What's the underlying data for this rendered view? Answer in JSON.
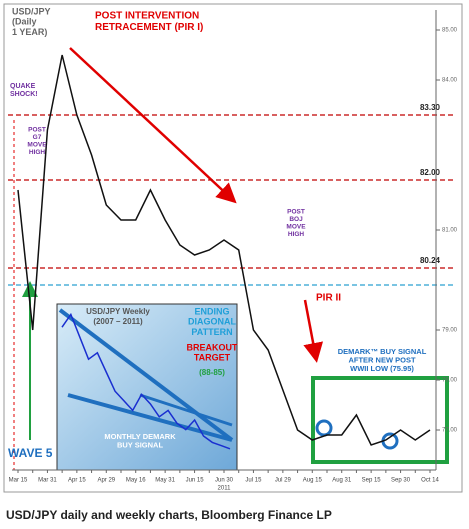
{
  "chart_data": [
    {
      "type": "line",
      "categories": [
        "Mar 15",
        null,
        "Mar 31",
        null,
        "Apr 15",
        null,
        "Apr 29",
        null,
        "May 16",
        null,
        "May 31",
        null,
        "Jun 15",
        null,
        "Jun 30",
        null,
        "Jul 15",
        null,
        "Jul 29",
        null,
        "Aug 15",
        null,
        "Aug 31",
        null,
        "Sep 15",
        null,
        "Sep 30",
        null,
        "Oct 14"
      ],
      "year_label": "2011",
      "series": [
        {
          "name": "USD/JPY",
          "color": "#111111",
          "values": [
            81.8,
            79.0,
            83.0,
            84.5,
            83.3,
            82.5,
            81.5,
            81.2,
            81.2,
            81.8,
            81.2,
            80.7,
            80.5,
            80.6,
            80.8,
            80.6,
            79.0,
            78.6,
            77.8,
            77.0,
            76.8,
            76.9,
            76.9,
            77.3,
            76.7,
            76.8,
            77.0,
            76.8,
            77.0
          ]
        }
      ],
      "ylim": [
        76.2,
        85.4
      ],
      "yticks": [
        {
          "value": 85,
          "label": "85.00"
        },
        {
          "value": 84,
          "label": "84.00"
        },
        {
          "value": 81,
          "label": "81.00"
        },
        {
          "value": 79,
          "label": "79.00"
        },
        {
          "value": 78,
          "label": "78.00"
        },
        {
          "value": 77,
          "label": "77.00"
        }
      ],
      "key_levels": [
        {
          "value": 83.3,
          "label": "83.30",
          "color": "#c00000"
        },
        {
          "value": 82,
          "label": "82.00",
          "color": "#c00000"
        },
        {
          "value": 80.24,
          "label": "80.24",
          "color": "#c00000"
        },
        {
          "value": 79.9,
          "label": "",
          "color": "#2aa0d0"
        }
      ],
      "annotations": [
        {
          "lines": [
            "USD/JPY",
            "(Daily",
            "1 YEAR)"
          ],
          "color": "#666666"
        },
        {
          "lines": [
            "POST INTERVENTION",
            "RETRACEMENT (PIR I)"
          ],
          "color": "#e00000"
        },
        {
          "lines": [
            "QUAKE",
            "SHOCK!"
          ],
          "color": "#7030a0"
        },
        {
          "lines": [
            "POST",
            "G7",
            "MOVE",
            "HIGH"
          ],
          "color": "#7030a0"
        },
        {
          "lines": [
            "POST",
            "BOJ",
            "MOVE",
            "HIGH"
          ],
          "color": "#7030a0"
        },
        {
          "lines": [
            "PIR II"
          ],
          "color": "#e00000"
        },
        {
          "lines": [
            "DEMARK™ BUY SIGNAL",
            "AFTER NEW POST",
            "WWII LOW (75.95)"
          ],
          "color": "#1f6fbf"
        },
        {
          "lines": [
            "WAVE 5"
          ],
          "color": "#1f6fbf"
        }
      ]
    },
    {
      "type": "line",
      "title_lines": [
        "USD/JPY Weekly",
        "(2007 – 2011)"
      ],
      "series": [
        {
          "name": "USD/JPY weekly",
          "color": "#1a2fd0",
          "values": [
            118,
            122,
            115,
            108,
            110,
            104,
            98,
            95,
            92,
            97,
            94,
            90,
            92,
            88,
            86,
            89,
            84,
            82,
            81,
            80
          ]
        }
      ],
      "ylim": [
        74,
        124
      ],
      "annotations": [
        {
          "lines": [
            "ENDING",
            "DIAGONAL",
            "PATTERN"
          ],
          "color": "#1f9fd8"
        },
        {
          "lines": [
            "BREAKOUT",
            "TARGET"
          ],
          "color": "#e00000"
        },
        {
          "lines": [
            "(88-85)"
          ],
          "color": "#20a040"
        },
        {
          "lines": [
            "MONTHLY DEMARK",
            "BUY SIGNAL"
          ],
          "color": "#ffffff"
        }
      ]
    }
  ],
  "caption": "USD/JPY daily and weekly charts, Bloomberg Finance LP"
}
